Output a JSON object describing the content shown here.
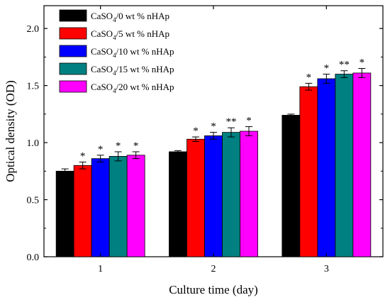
{
  "chart_data": {
    "type": "bar",
    "title": "",
    "xlabel": "Culture time (day)",
    "ylabel": "Optical density (OD)",
    "ylim": [
      0,
      2.2
    ],
    "yticks": [
      "0.0",
      "0.5",
      "1.0",
      "1.5",
      "2.0"
    ],
    "ytick_values": [
      0,
      0.5,
      1.0,
      1.5,
      2.0
    ],
    "categories": [
      "1",
      "2",
      "3"
    ],
    "legend_position": "top-left",
    "grid": false,
    "series": [
      {
        "name": "CaSO4/0 wt % nHAp",
        "name_main": "CaSO",
        "name_sub": "4",
        "name_rest": "/0 wt % nHAp",
        "color": "#000000",
        "values": [
          0.75,
          0.92,
          1.24
        ],
        "errors": [
          0.02,
          0.01,
          0.01
        ],
        "markers": [
          "",
          "",
          ""
        ]
      },
      {
        "name": "CaSO4/5 wt % nHAp",
        "name_main": "CaSO",
        "name_sub": "4",
        "name_rest": "/5 wt % nHAp",
        "color": "#ff0000",
        "values": [
          0.8,
          1.03,
          1.49
        ],
        "errors": [
          0.03,
          0.02,
          0.03
        ],
        "markers": [
          "*",
          "*",
          "*"
        ]
      },
      {
        "name": "CaSO4/10 wt % nHAp",
        "name_main": "CaSO",
        "name_sub": "4",
        "name_rest": "/10 wt % nHAp",
        "color": "#0000ff",
        "values": [
          0.86,
          1.06,
          1.56
        ],
        "errors": [
          0.03,
          0.03,
          0.04
        ],
        "markers": [
          "*",
          "*",
          "*"
        ]
      },
      {
        "name": "CaSO4/15 wt % nHAp",
        "name_main": "CaSO",
        "name_sub": "4",
        "name_rest": "/15 wt % nHAp",
        "color": "#008080",
        "values": [
          0.88,
          1.09,
          1.6
        ],
        "errors": [
          0.04,
          0.04,
          0.03
        ],
        "markers": [
          "*",
          "**",
          "**"
        ]
      },
      {
        "name": "CaSO4/20 wt % nHAp",
        "name_main": "CaSO",
        "name_sub": "4",
        "name_rest": "/20 wt % nHAp",
        "color": "#ff00ff",
        "values": [
          0.89,
          1.1,
          1.61
        ],
        "errors": [
          0.03,
          0.04,
          0.04
        ],
        "markers": [
          "*",
          "*",
          "*"
        ]
      }
    ]
  }
}
